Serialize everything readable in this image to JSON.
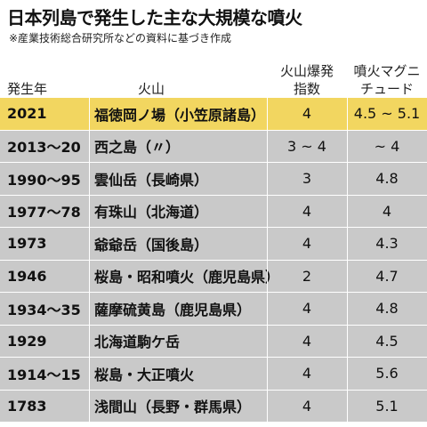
{
  "title": "日本列島で発生した主な大規模な噴火",
  "subtitle": "※産業技術総合研究所などの資料に基づき作成",
  "headers": {
    "year": "発生年",
    "name": "火山",
    "vei_line1": "火山爆発",
    "vei_line2": "指数",
    "mag_line1": "噴火マグニ",
    "mag_line2": "チュード"
  },
  "colors": {
    "highlight": "#f2d660",
    "row": "#c9c9c9"
  },
  "chart_data": {
    "type": "table",
    "title": "日本列島で発生した主な大規模な噴火",
    "columns": [
      "発生年",
      "火山",
      "火山爆発指数",
      "噴火マグニチュード"
    ],
    "rows": [
      {
        "year": "2021",
        "name": "福徳岡ノ場（小笠原諸島）",
        "vei": "4",
        "mag": "4.5 ~ 5.1",
        "highlight": true
      },
      {
        "year": "2013～20",
        "name": "西之島（〃）",
        "vei": "3 ~ 4",
        "mag": "~ 4",
        "highlight": false
      },
      {
        "year": "1990～95",
        "name": "雲仙岳（長崎県）",
        "vei": "3",
        "mag": "4.8",
        "highlight": false
      },
      {
        "year": "1977～78",
        "name": "有珠山（北海道）",
        "vei": "4",
        "mag": "4",
        "highlight": false
      },
      {
        "year": "1973",
        "name": "爺爺岳（国後島）",
        "vei": "4",
        "mag": "4.3",
        "highlight": false
      },
      {
        "year": "1946",
        "name": "桜島・昭和噴火（鹿児島県）",
        "vei": "2",
        "mag": "4.7",
        "highlight": false
      },
      {
        "year": "1934～35",
        "name": "薩摩硫黄島（鹿児島県）",
        "vei": "4",
        "mag": "4.8",
        "highlight": false
      },
      {
        "year": "1929",
        "name": "北海道駒ケ岳",
        "vei": "4",
        "mag": "4.5",
        "highlight": false
      },
      {
        "year": "1914～15",
        "name": "桜島・大正噴火",
        "vei": "4",
        "mag": "5.6",
        "highlight": false
      },
      {
        "year": "1783",
        "name": "浅間山（長野・群馬県）",
        "vei": "4",
        "mag": "5.1",
        "highlight": false
      }
    ]
  }
}
